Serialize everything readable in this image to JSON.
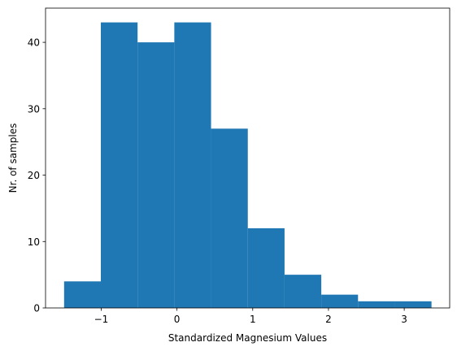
{
  "chart_data": {
    "type": "histogram",
    "title": "",
    "xlabel": "Standardized Magnesium Values",
    "ylabel": "Nr. of samples",
    "xlim": [
      -1.735,
      3.6
    ],
    "ylim": [
      0,
      45.15
    ],
    "bin_edges": [
      -1.49,
      -1.005,
      -0.52,
      -0.035,
      0.45,
      0.935,
      1.42,
      1.905,
      2.39,
      2.875,
      3.36
    ],
    "counts": [
      4,
      43,
      40,
      43,
      27,
      12,
      5,
      2,
      1,
      1
    ],
    "xticks": [
      -1,
      0,
      1,
      2,
      3
    ],
    "xtick_labels": [
      "−1",
      "0",
      "1",
      "2",
      "3"
    ],
    "yticks": [
      0,
      10,
      20,
      30,
      40
    ],
    "ytick_labels": [
      "0",
      "10",
      "20",
      "30",
      "40"
    ],
    "bar_color": "#1f77b4",
    "grid": false
  }
}
